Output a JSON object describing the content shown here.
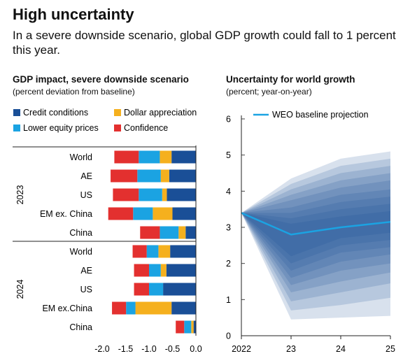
{
  "header": {
    "title": "High uncertainty",
    "subtitle": "In a severe downside scenario, global GDP growth could fall to 1 percent this year."
  },
  "colors": {
    "credit": "#1a4f97",
    "equity": "#1ba3e2",
    "dollar": "#f5b01e",
    "confidence": "#e3302f",
    "baseline": "#1ba3e2",
    "fan": "#1a4f97"
  },
  "chart_data": [
    {
      "type": "bar",
      "orientation": "horizontal",
      "stacked": true,
      "title": "GDP impact, severe downside scenario",
      "subtitle": "(percent deviation from baseline)",
      "legend": [
        {
          "key": "credit",
          "label": "Credit conditions"
        },
        {
          "key": "dollar",
          "label": "Dollar appreciation"
        },
        {
          "key": "equity",
          "label": "Lower equity prices"
        },
        {
          "key": "confidence",
          "label": "Confidence"
        }
      ],
      "groups": [
        {
          "label": "2023",
          "categories": [
            "World",
            "AE",
            "US",
            "EM ex. China",
            "China"
          ]
        },
        {
          "label": "2024",
          "categories": [
            "World",
            "AE",
            "US",
            "EM ex.China",
            "China"
          ]
        }
      ],
      "series": [
        {
          "key": "credit",
          "values": [
            [
              -0.52,
              -0.57,
              -0.62,
              -0.5,
              -0.22
            ],
            [
              -0.55,
              -0.63,
              -0.7,
              -0.52,
              -0.05
            ]
          ]
        },
        {
          "key": "dollar",
          "values": [
            [
              -0.25,
              -0.18,
              -0.1,
              -0.42,
              -0.15
            ],
            [
              -0.25,
              -0.12,
              0,
              -0.77,
              -0.05
            ]
          ]
        },
        {
          "key": "equity",
          "values": [
            [
              -0.45,
              -0.5,
              -0.5,
              -0.42,
              -0.4
            ],
            [
              -0.25,
              -0.25,
              -0.3,
              -0.2,
              -0.15
            ]
          ]
        },
        {
          "key": "confidence",
          "values": [
            [
              -0.52,
              -0.57,
              -0.55,
              -0.53,
              -0.42
            ],
            [
              -0.3,
              -0.32,
              -0.32,
              -0.3,
              -0.18
            ]
          ]
        }
      ],
      "xlim": [
        -2.0,
        0.0
      ],
      "xticks": [
        "-2.0",
        "-1.5",
        "-1.0",
        "-0.5",
        "0.0"
      ],
      "tick_values": [
        -2.0,
        -1.5,
        -1.0,
        -0.5,
        0.0
      ]
    },
    {
      "type": "area",
      "subtype": "fan",
      "title": "Uncertainty for world growth",
      "subtitle": "(percent; year-on-year)",
      "x": [
        2022,
        2023,
        2024,
        2025
      ],
      "xticks": [
        "2022",
        "23",
        "24",
        "25"
      ],
      "ylim": [
        0,
        6
      ],
      "yticks": [
        "0",
        "1",
        "2",
        "3",
        "4",
        "5",
        "6"
      ],
      "baseline": {
        "name": "WEO baseline projection",
        "values": [
          3.4,
          2.8,
          3.0,
          3.15
        ]
      },
      "bands": [
        {
          "upper": [
            3.4,
            4.35,
            4.9,
            5.1
          ],
          "lower": [
            3.4,
            0.45,
            0.5,
            0.55
          ]
        },
        {
          "upper": [
            3.4,
            4.2,
            4.7,
            4.9
          ],
          "lower": [
            3.4,
            0.7,
            0.85,
            1.05
          ]
        },
        {
          "upper": [
            3.4,
            4.05,
            4.5,
            4.7
          ],
          "lower": [
            3.4,
            0.95,
            1.2,
            1.45
          ]
        },
        {
          "upper": [
            3.4,
            3.9,
            4.3,
            4.5
          ],
          "lower": [
            3.4,
            1.2,
            1.5,
            1.75
          ]
        },
        {
          "upper": [
            3.4,
            3.75,
            4.1,
            4.3
          ],
          "lower": [
            3.4,
            1.4,
            1.8,
            2.0
          ]
        },
        {
          "upper": [
            3.4,
            3.55,
            3.9,
            4.05
          ],
          "lower": [
            3.4,
            1.6,
            2.05,
            2.25
          ]
        },
        {
          "upper": [
            3.4,
            3.4,
            3.7,
            3.85
          ],
          "lower": [
            3.4,
            1.8,
            2.3,
            2.45
          ]
        },
        {
          "upper": [
            3.4,
            3.25,
            3.5,
            3.65
          ],
          "lower": [
            3.4,
            2.0,
            2.5,
            2.65
          ]
        },
        {
          "upper": [
            3.4,
            3.1,
            3.3,
            3.45
          ],
          "lower": [
            3.4,
            2.2,
            2.7,
            2.85
          ]
        }
      ]
    }
  ]
}
